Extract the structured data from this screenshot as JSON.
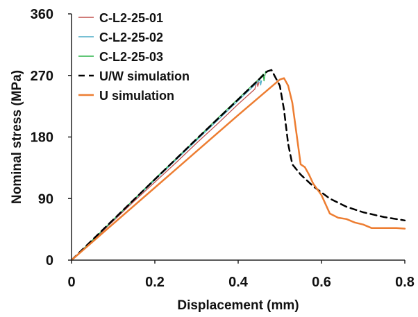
{
  "chart_data": {
    "type": "line",
    "xlabel": "Displacement (mm)",
    "ylabel": "Nominal stress (MPa)",
    "xlim": [
      0,
      0.8
    ],
    "ylim": [
      0,
      360
    ],
    "xticks": [
      0,
      0.2,
      0.4,
      0.6,
      0.8
    ],
    "xtick_labels": [
      "0",
      "0.2",
      "0.4",
      "0.6",
      "0.8"
    ],
    "yticks": [
      0,
      90,
      180,
      270,
      360
    ],
    "ytick_labels": [
      "0",
      "90",
      "180",
      "270",
      "360"
    ],
    "grid": false,
    "legend_position": "top-left",
    "series": [
      {
        "name": "C-L2-25-01",
        "color": "#c0504d",
        "style": "solid",
        "x": [
          0,
          0.05,
          0.1,
          0.15,
          0.2,
          0.25,
          0.3,
          0.35,
          0.4,
          0.44,
          0.445,
          0.447,
          0.45
        ],
        "y": [
          0,
          28,
          57,
          86,
          114,
          142,
          171,
          199,
          228,
          250,
          262,
          254,
          260
        ]
      },
      {
        "name": "C-L2-25-02",
        "color": "#4bacc6",
        "style": "solid",
        "x": [
          0,
          0.05,
          0.1,
          0.15,
          0.2,
          0.25,
          0.3,
          0.35,
          0.4,
          0.45,
          0.452,
          0.454,
          0.456
        ],
        "y": [
          0,
          29,
          58,
          88,
          117,
          146,
          175,
          204,
          233,
          262,
          266,
          256,
          262
        ]
      },
      {
        "name": "C-L2-25-03",
        "color": "#2db34a",
        "style": "solid",
        "x": [
          0,
          0.05,
          0.1,
          0.15,
          0.2,
          0.25,
          0.3,
          0.35,
          0.4,
          0.45,
          0.46,
          0.462,
          0.466
        ],
        "y": [
          0,
          29,
          59,
          89,
          119,
          148,
          177,
          207,
          236,
          265,
          272,
          262,
          276
        ]
      },
      {
        "name": "U/W simulation",
        "color": "#000000",
        "style": "dashed",
        "x": [
          0,
          0.1,
          0.2,
          0.3,
          0.4,
          0.47,
          0.48,
          0.5,
          0.51,
          0.52,
          0.53,
          0.55,
          0.58,
          0.62,
          0.66,
          0.7,
          0.75,
          0.8
        ],
        "y": [
          0,
          59,
          118,
          177,
          235,
          276,
          278,
          255,
          220,
          170,
          140,
          125,
          108,
          90,
          78,
          70,
          63,
          58
        ]
      },
      {
        "name": "U simulation",
        "color": "#ed7d31",
        "style": "solid",
        "x": [
          0,
          0.1,
          0.2,
          0.3,
          0.4,
          0.5,
          0.51,
          0.52,
          0.53,
          0.54,
          0.55,
          0.56,
          0.57,
          0.58,
          0.6,
          0.62,
          0.64,
          0.66,
          0.68,
          0.7,
          0.72,
          0.75,
          0.78,
          0.8
        ],
        "y": [
          0,
          53,
          106,
          159,
          212,
          264,
          266,
          255,
          230,
          185,
          140,
          136,
          125,
          112,
          95,
          68,
          62,
          60,
          55,
          52,
          47,
          47,
          47,
          46
        ]
      }
    ]
  }
}
